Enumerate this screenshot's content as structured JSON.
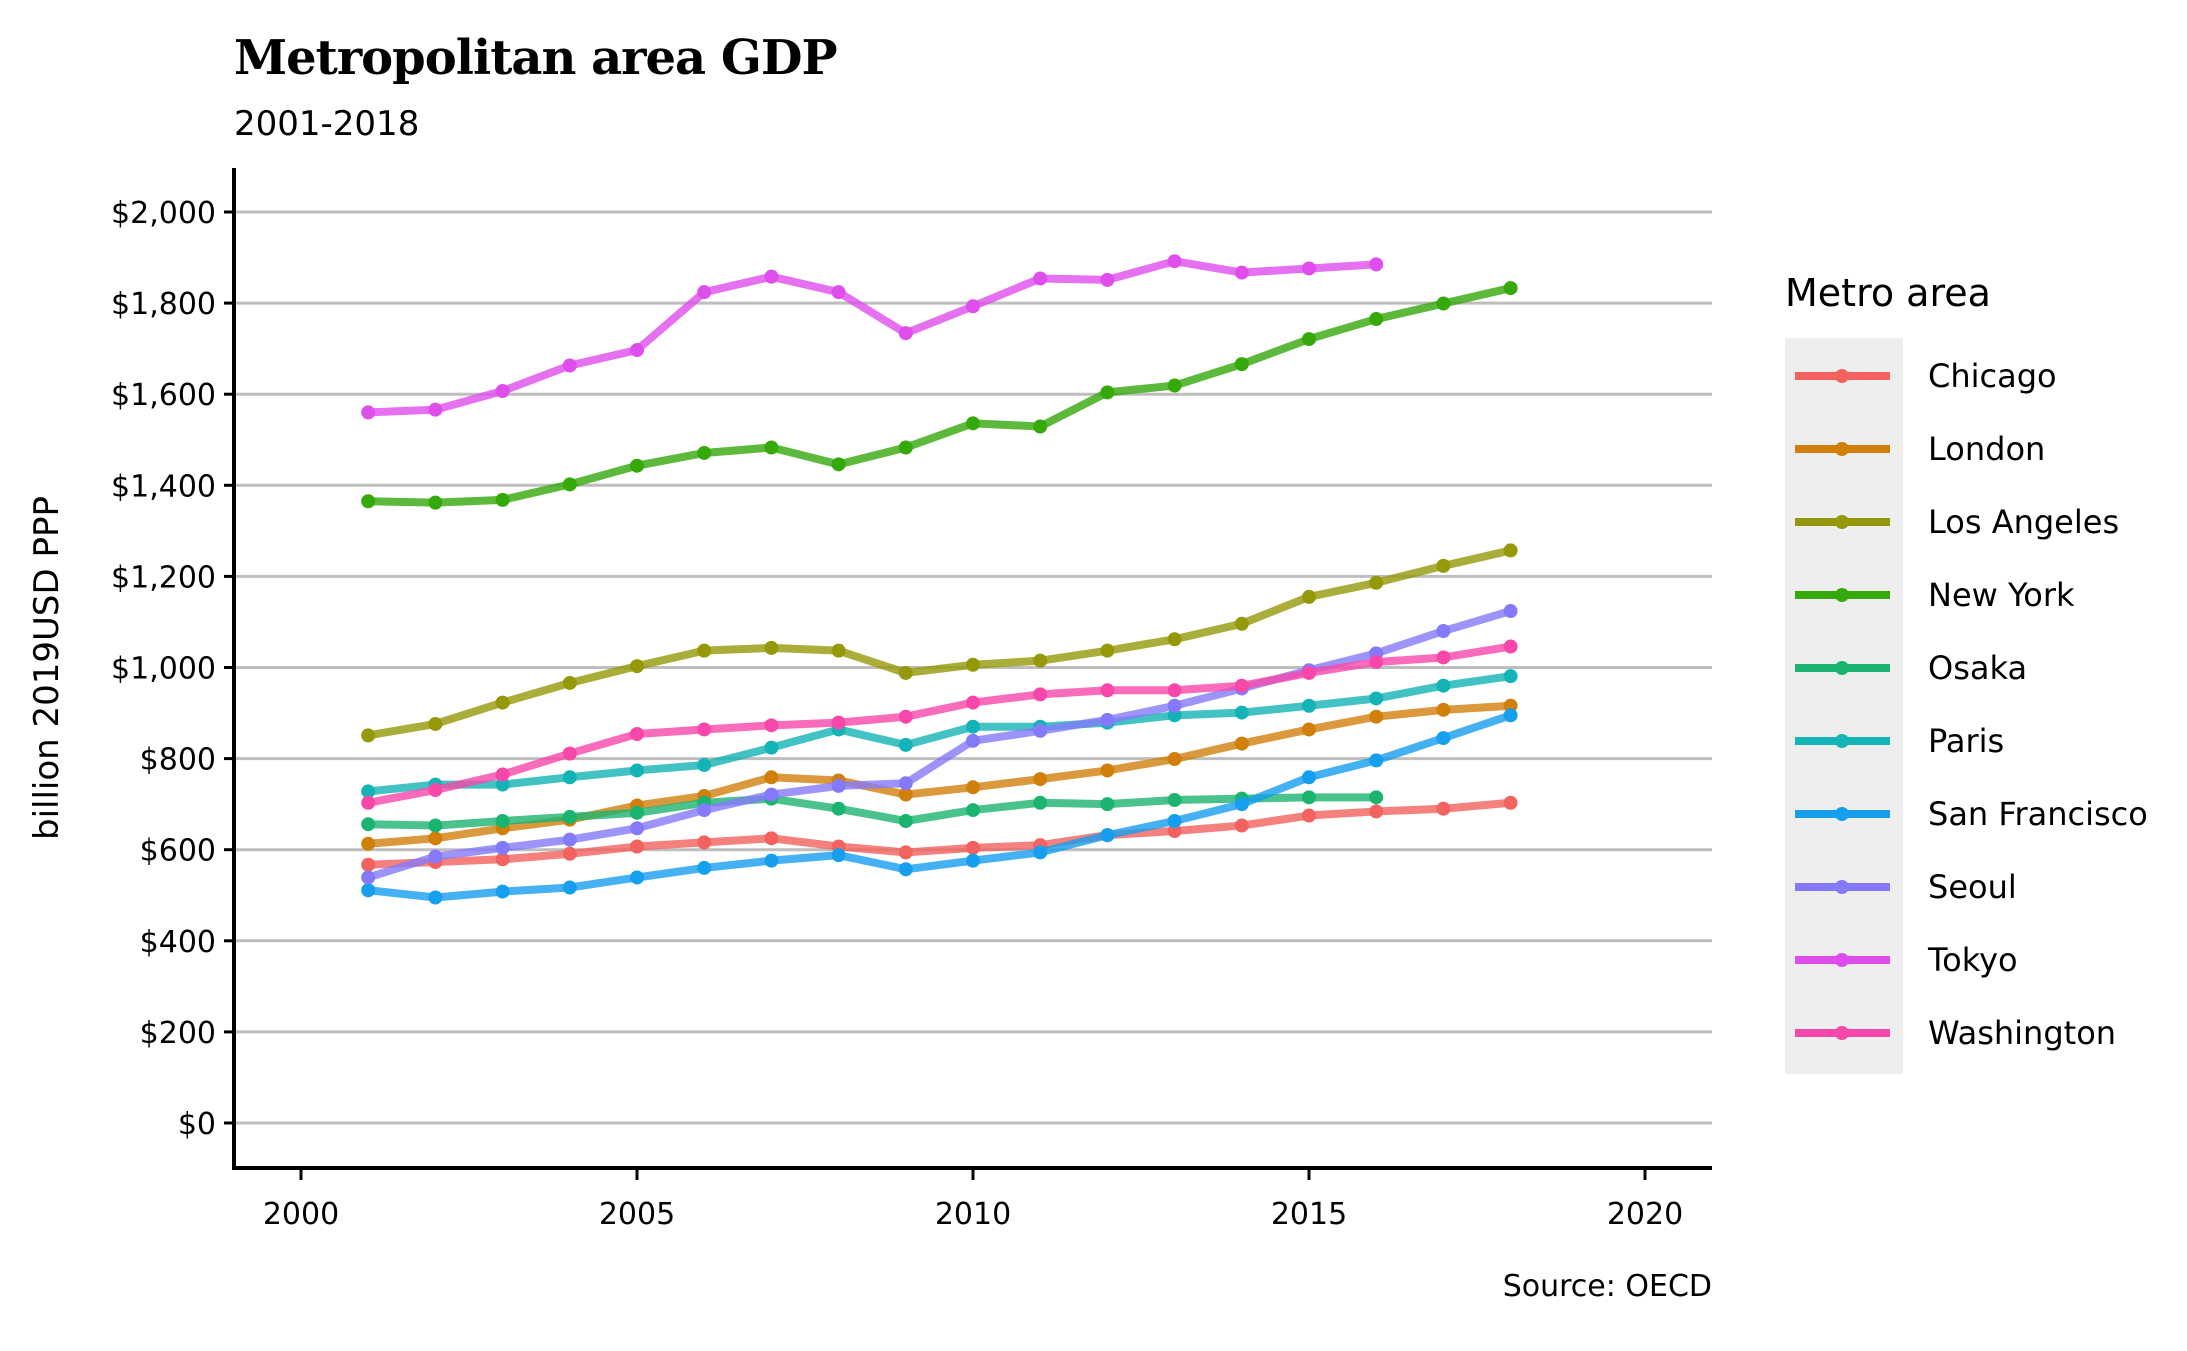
{
  "chart_data": {
    "type": "line",
    "title": "Metropolitan area GDP",
    "subtitle": "2001-2018",
    "xlabel": "",
    "ylabel": "billion 2019USD PPP",
    "caption": "Source: OECD",
    "xlim": [
      1999,
      2021
    ],
    "ylim": [
      -100,
      2100
    ],
    "x_ticks": [
      2000,
      2005,
      2010,
      2015,
      2020
    ],
    "x_tick_labels": [
      "2000",
      "2005",
      "2010",
      "2015",
      "2020"
    ],
    "y_ticks": [
      0,
      200,
      400,
      600,
      800,
      1000,
      1200,
      1400,
      1600,
      1800,
      2000
    ],
    "y_tick_labels": [
      "$0",
      "$200",
      "$400",
      "$600",
      "$800",
      "$1,000",
      "$1,200",
      "$1,400",
      "$1,600",
      "$1,800",
      "$2,000"
    ],
    "grid": "horizontal major",
    "legend": {
      "title": "Metro area",
      "position": "right"
    },
    "series": [
      {
        "name": "Chicago",
        "color": "#F2625E",
        "start_year": 2001,
        "values": [
          567,
          573,
          579,
          591,
          607,
          616,
          625,
          607,
          594,
          604,
          610,
          632,
          641,
          653,
          675,
          684,
          690,
          703
        ]
      },
      {
        "name": "London",
        "color": "#D07F0B",
        "start_year": 2001,
        "values": [
          613,
          625,
          647,
          666,
          697,
          718,
          759,
          752,
          721,
          737,
          755,
          774,
          799,
          833,
          864,
          892,
          907,
          916
        ]
      },
      {
        "name": "Los Angeles",
        "color": "#959808",
        "start_year": 2001,
        "values": [
          851,
          876,
          923,
          966,
          1003,
          1037,
          1043,
          1037,
          988,
          1006,
          1015,
          1037,
          1062,
          1096,
          1155,
          1186,
          1223,
          1257
        ]
      },
      {
        "name": "New York",
        "color": "#35A80A",
        "start_year": 2001,
        "values": [
          1365,
          1362,
          1368,
          1402,
          1443,
          1471,
          1483,
          1446,
          1483,
          1536,
          1529,
          1604,
          1619,
          1666,
          1721,
          1765,
          1799,
          1833
        ]
      },
      {
        "name": "Osaka",
        "color": "#1BB46E",
        "start_year": 2001,
        "values": [
          656,
          653,
          663,
          672,
          681,
          703,
          712,
          690,
          663,
          687,
          703,
          700,
          709,
          712,
          715,
          715
        ]
      },
      {
        "name": "Paris",
        "color": "#14B3B5",
        "start_year": 2001,
        "values": [
          728,
          743,
          743,
          759,
          774,
          786,
          824,
          864,
          830,
          870,
          870,
          879,
          895,
          901,
          916,
          932,
          960,
          981
        ]
      },
      {
        "name": "San Francisco",
        "color": "#169EEF",
        "start_year": 2001,
        "values": [
          511,
          495,
          508,
          517,
          539,
          560,
          576,
          588,
          557,
          576,
          594,
          632,
          663,
          700,
          759,
          796,
          845,
          895
        ]
      },
      {
        "name": "Seoul",
        "color": "#8479F9",
        "start_year": 2001,
        "values": [
          539,
          585,
          604,
          622,
          647,
          687,
          721,
          740,
          746,
          839,
          861,
          885,
          916,
          954,
          994,
          1031,
          1080,
          1124
        ]
      },
      {
        "name": "Tokyo",
        "color": "#DF4EEC",
        "start_year": 2001,
        "values": [
          1560,
          1566,
          1607,
          1663,
          1697,
          1824,
          1858,
          1824,
          1734,
          1793,
          1854,
          1851,
          1892,
          1867,
          1876,
          1885
        ]
      },
      {
        "name": "Washington",
        "color": "#F847AA",
        "start_year": 2001,
        "values": [
          703,
          731,
          765,
          811,
          854,
          864,
          873,
          879,
          892,
          923,
          941,
          950,
          950,
          960,
          988,
          1012,
          1022,
          1046
        ]
      }
    ]
  }
}
